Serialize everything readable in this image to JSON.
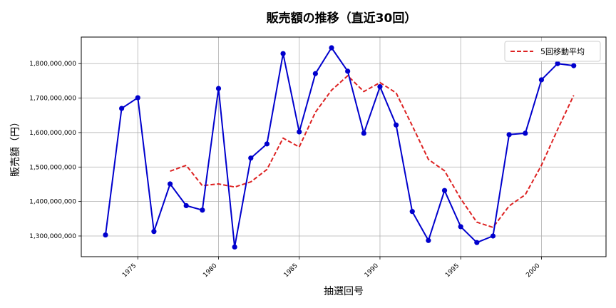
{
  "chart_data": {
    "type": "line",
    "title": "販売額の推移（直近30回）",
    "xlabel": "抽選回号",
    "ylabel": "販売額（円）",
    "xlim": [
      1971.5,
      2004.0
    ],
    "ylim": [
      1240000000,
      1877000000
    ],
    "x_ticks": [
      1975,
      1980,
      1985,
      1990,
      1995,
      2000
    ],
    "y_ticks": [
      1300000000,
      1400000000,
      1500000000,
      1600000000,
      1700000000,
      1800000000
    ],
    "y_tick_labels": [
      "1,300,000,000",
      "1,400,000,000",
      "1,500,000,000",
      "1,600,000,000",
      "1,700,000,000",
      "1,800,000,000"
    ],
    "grid": true,
    "legend_position": "top-right",
    "x": [
      1973,
      1974,
      1975,
      1976,
      1977,
      1978,
      1979,
      1980,
      1981,
      1982,
      1983,
      1984,
      1985,
      1986,
      1987,
      1988,
      1989,
      1990,
      1991,
      1992,
      1993,
      1994,
      1995,
      1996,
      1997,
      1998,
      1999,
      2000,
      2001,
      2002
    ],
    "series": [
      {
        "color": "#0000cd",
        "style": "solid",
        "marker": "circle",
        "values": [
          1303000000,
          1670000000,
          1701000000,
          1313000000,
          1451000000,
          1388000000,
          1375000000,
          1728000000,
          1268000000,
          1526000000,
          1567000000,
          1829000000,
          1602000000,
          1771000000,
          1846000000,
          1778000000,
          1598000000,
          1733000000,
          1622000000,
          1371000000,
          1287000000,
          1432000000,
          1327000000,
          1281000000,
          1300000000,
          1594000000,
          1598000000,
          1753000000,
          1800000000,
          1794000000
        ]
      },
      {
        "name": "5回移動平均",
        "color": "#dd2222",
        "style": "dashed",
        "marker": "none",
        "values": [
          null,
          null,
          null,
          null,
          1488000000,
          1505000000,
          1446000000,
          1451000000,
          1442000000,
          1457000000,
          1493000000,
          1584000000,
          1558000000,
          1659000000,
          1723000000,
          1765000000,
          1719000000,
          1745000000,
          1715000000,
          1620000000,
          1522000000,
          1489000000,
          1408000000,
          1340000000,
          1325000000,
          1387000000,
          1420000000,
          1505000000,
          1609000000,
          1708000000
        ]
      }
    ]
  }
}
